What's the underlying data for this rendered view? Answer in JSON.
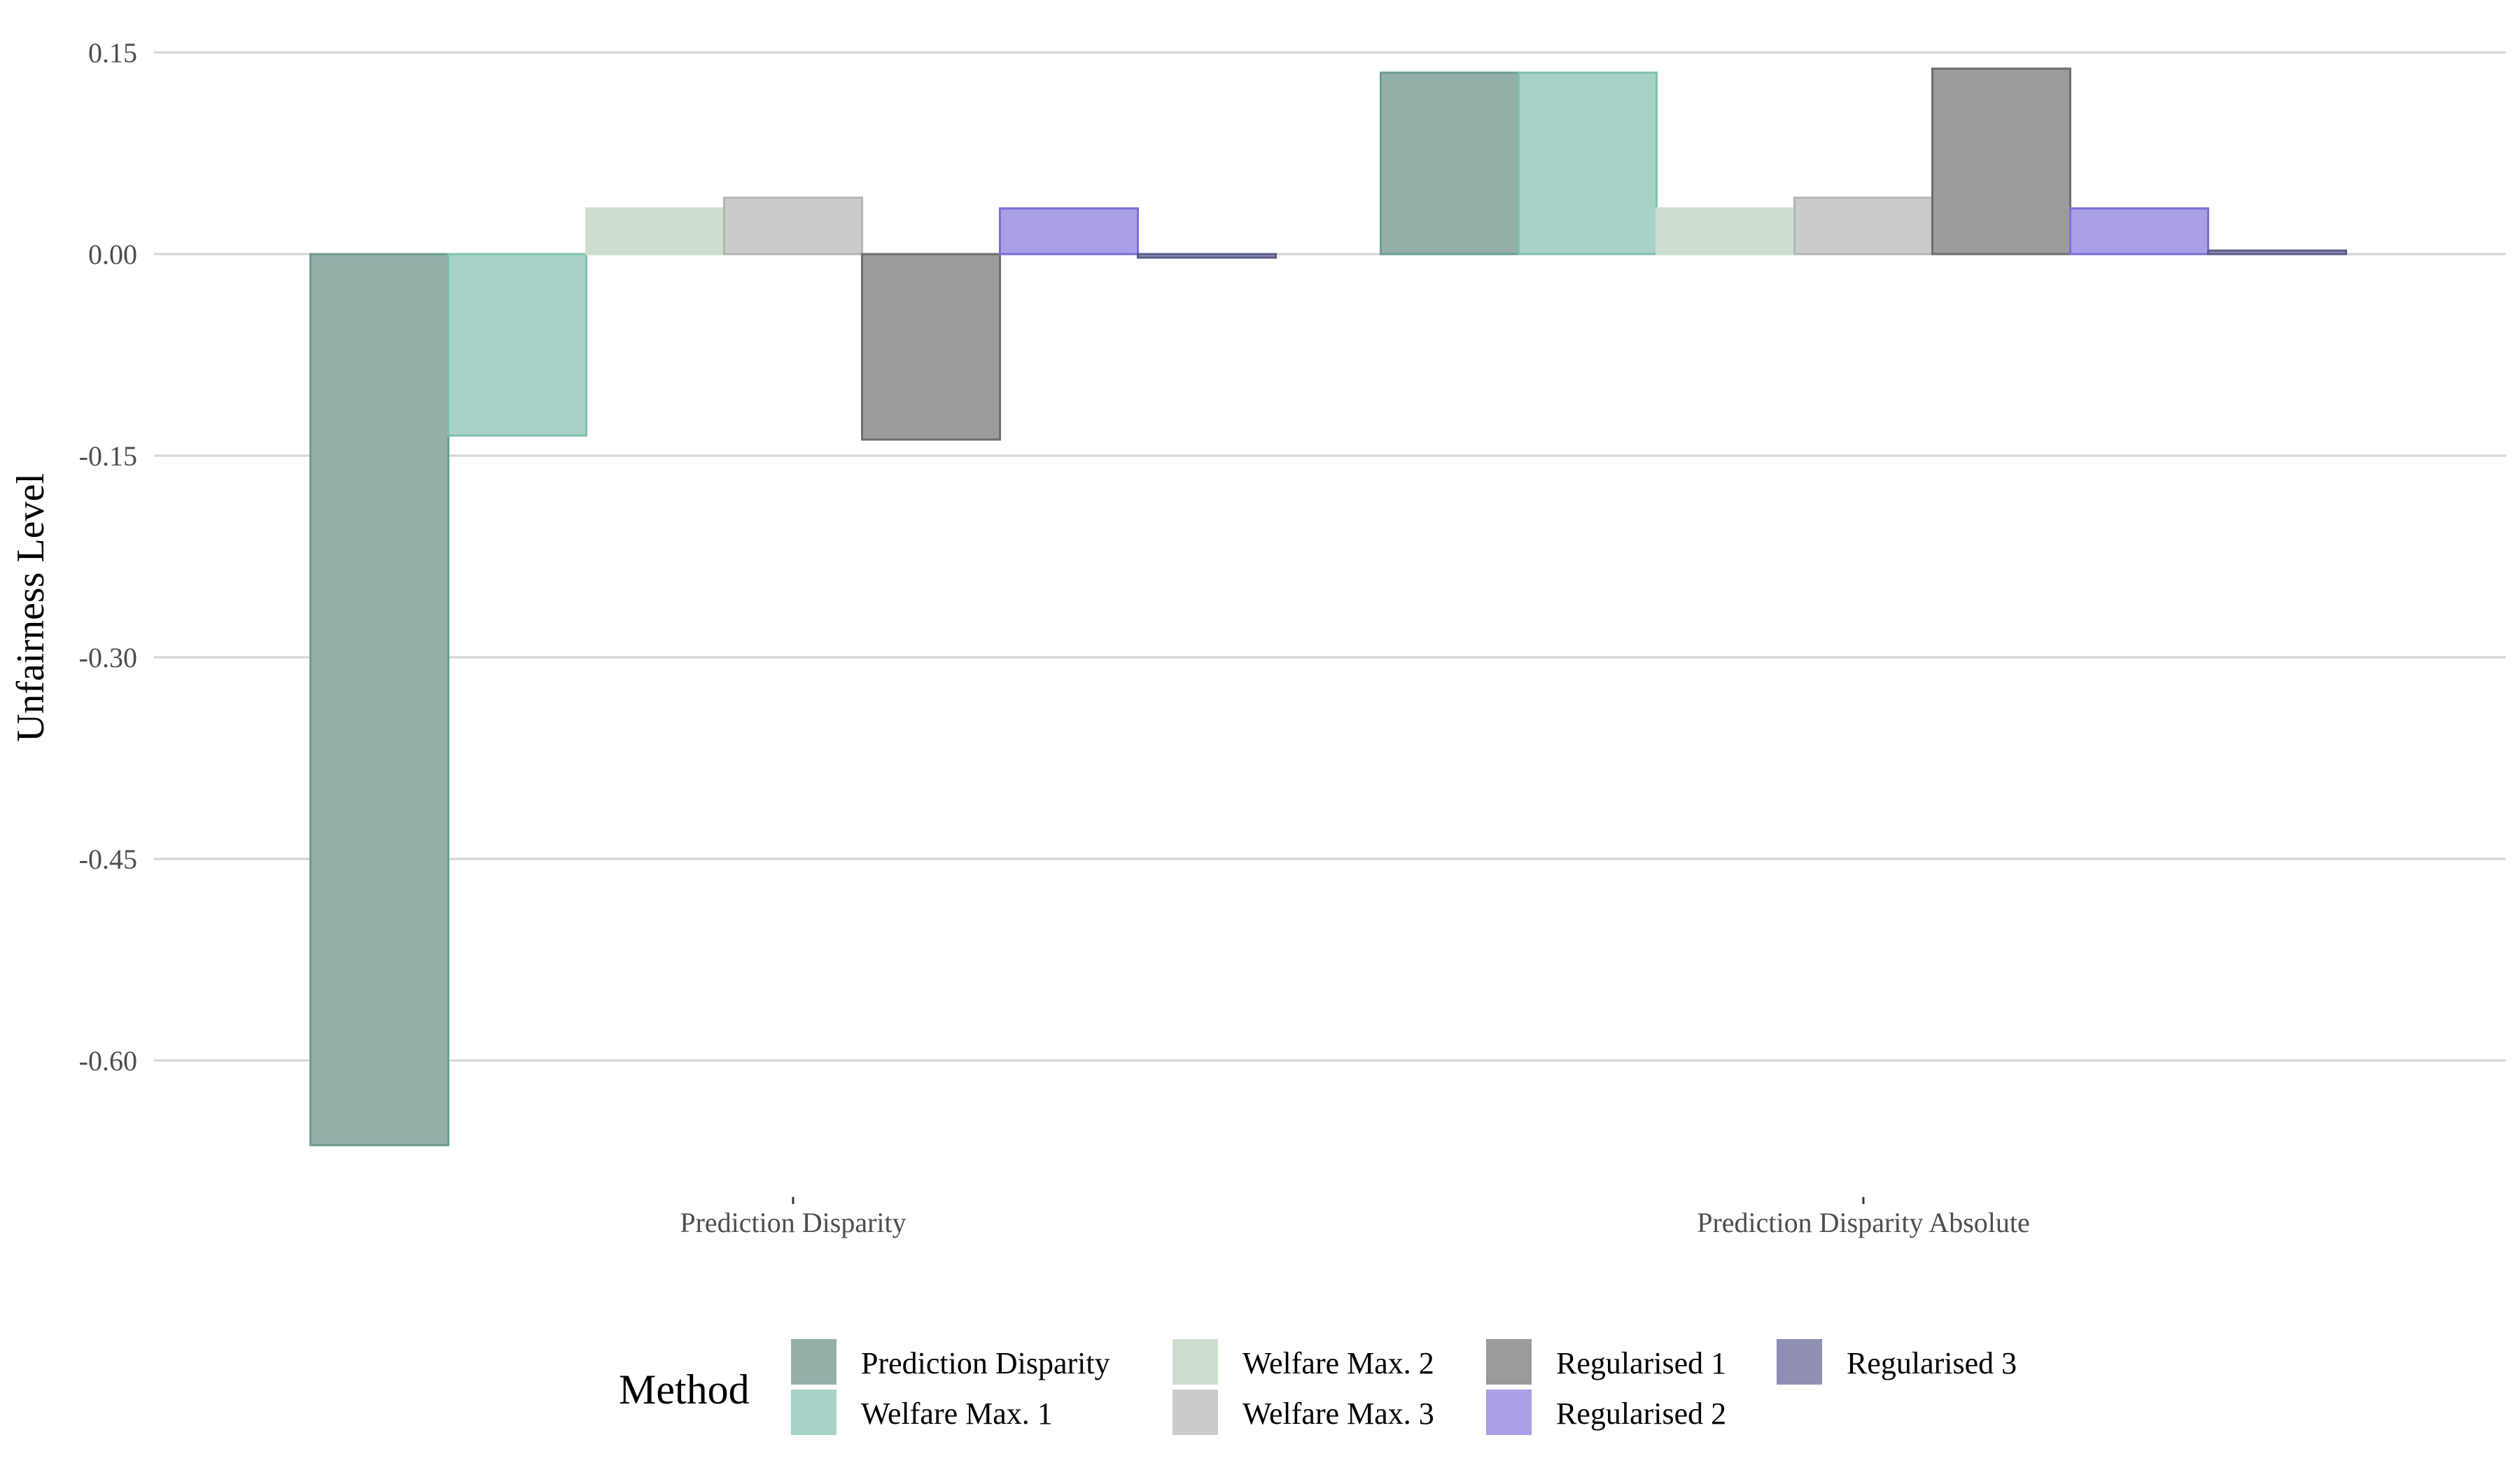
{
  "chart_data": {
    "type": "bar",
    "title": "",
    "xlabel": "",
    "ylabel": "Unfairness Level",
    "ylim": [
      -0.7,
      0.18
    ],
    "yticks": [
      0.15,
      0.0,
      -0.15,
      -0.3,
      -0.45,
      -0.6
    ],
    "ytick_labels": [
      "0.15",
      "0.00",
      "-0.15",
      "-0.30",
      "-0.45",
      "-0.60"
    ],
    "grid": true,
    "legend_title": "Method",
    "legend_position": "bottom",
    "categories": [
      "Prediction Disparity",
      "Prediction Disparity Absolute"
    ],
    "series": [
      {
        "name": "Prediction Disparity",
        "color": "#94aea8",
        "stroke": "#6a9d92",
        "values": [
          -0.663,
          0.135
        ]
      },
      {
        "name": "Welfare Max. 1",
        "color": "#a7d2c7",
        "stroke": "#7fbfae",
        "values": [
          -0.135,
          0.135
        ]
      },
      {
        "name": "Welfare Max. 2",
        "color": "#cddece",
        "stroke": "#cddece",
        "values": [
          0.034,
          0.034
        ]
      },
      {
        "name": "Welfare Max. 3",
        "color": "#cbcbcb",
        "stroke": "#b5b5b5",
        "values": [
          0.042,
          0.042
        ]
      },
      {
        "name": "Regularised 1",
        "color": "#9b9b9b",
        "stroke": "#6e6e6e",
        "values": [
          -0.138,
          0.138
        ]
      },
      {
        "name": "Regularised 2",
        "color": "#a89fe6",
        "stroke": "#7b6fd8",
        "values": [
          0.034,
          0.034
        ]
      },
      {
        "name": "Regularised 3",
        "color": "#8f8fb5",
        "stroke": "#5a5a8c",
        "values": [
          -0.002,
          0.002
        ]
      }
    ]
  }
}
